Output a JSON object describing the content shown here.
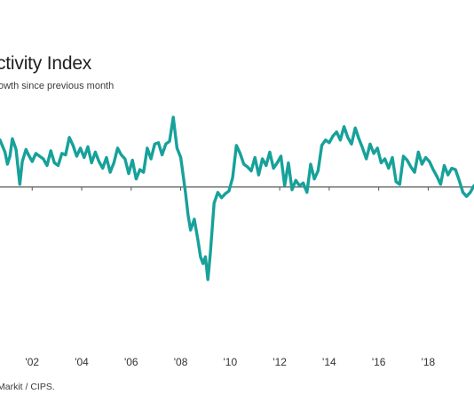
{
  "header": {
    "title": "ctivity Index",
    "subtitle": "owth since previous month"
  },
  "footer": {
    "source": "Markit / CIPS."
  },
  "colors": {
    "line": "#17a19a",
    "baseline": "#555555",
    "tick": "#555555"
  },
  "chart_data": {
    "type": "line",
    "title": "ctivity Index",
    "xlabel": "",
    "ylabel": "",
    "baseline": 50,
    "ylim": [
      40,
      56
    ],
    "xlim": [
      2000.7,
      2019.85
    ],
    "xticks": [
      {
        "value": 2002,
        "label": "'02"
      },
      {
        "value": 2004,
        "label": "'04"
      },
      {
        "value": 2006,
        "label": "'06"
      },
      {
        "value": 2008,
        "label": "'08"
      },
      {
        "value": 2010,
        "label": "'10"
      },
      {
        "value": 2012,
        "label": "'12"
      },
      {
        "value": 2014,
        "label": "'14"
      },
      {
        "value": 2016,
        "label": "'16"
      },
      {
        "value": 2018,
        "label": "'18"
      }
    ],
    "grid": false,
    "series": [
      {
        "x": [
          2000.7,
          2000.9,
          2001.0,
          2001.1,
          2001.2,
          2001.35,
          2001.5,
          2001.6,
          2001.75,
          2001.85,
          2002.0,
          2002.15,
          2002.3,
          2002.45,
          2002.6,
          2002.75,
          2002.9,
          2003.05,
          2003.2,
          2003.35,
          2003.5,
          2003.65,
          2003.8,
          2003.95,
          2004.1,
          2004.25,
          2004.4,
          2004.55,
          2004.7,
          2004.85,
          2005.0,
          2005.15,
          2005.3,
          2005.45,
          2005.6,
          2005.75,
          2005.9,
          2006.05,
          2006.2,
          2006.35,
          2006.5,
          2006.65,
          2006.8,
          2006.95,
          2007.1,
          2007.25,
          2007.4,
          2007.55,
          2007.7,
          2007.85,
          2008.0,
          2008.1,
          2008.2,
          2008.3,
          2008.4,
          2008.55,
          2008.7,
          2008.8,
          2008.9,
          2009.0,
          2009.1,
          2009.2,
          2009.35,
          2009.5,
          2009.65,
          2009.8,
          2009.95,
          2010.1,
          2010.25,
          2010.4,
          2010.55,
          2010.7,
          2010.85,
          2011.0,
          2011.15,
          2011.3,
          2011.45,
          2011.6,
          2011.75,
          2011.9,
          2012.05,
          2012.2,
          2012.35,
          2012.5,
          2012.65,
          2012.8,
          2012.95,
          2013.1,
          2013.25,
          2013.4,
          2013.55,
          2013.7,
          2013.85,
          2014.0,
          2014.15,
          2014.3,
          2014.45,
          2014.6,
          2014.75,
          2014.9,
          2015.05,
          2015.2,
          2015.35,
          2015.5,
          2015.65,
          2015.8,
          2015.95,
          2016.1,
          2016.25,
          2016.4,
          2016.55,
          2016.7,
          2016.85,
          2017.0,
          2017.15,
          2017.3,
          2017.45,
          2017.6,
          2017.75,
          2017.9,
          2018.05,
          2018.2,
          2018.35,
          2018.5,
          2018.65,
          2018.8,
          2018.95,
          2019.1,
          2019.25,
          2019.4,
          2019.55,
          2019.7,
          2019.85
        ],
        "y": [
          53.5,
          52.6,
          51.7,
          52.3,
          53.6,
          52.8,
          50.2,
          51.9,
          52.8,
          52.4,
          51.9,
          52.5,
          52.3,
          52.1,
          51.6,
          52.7,
          51.8,
          51.6,
          52.5,
          52.4,
          53.7,
          53.1,
          52.3,
          52.9,
          52.2,
          53.0,
          51.8,
          52.6,
          51.9,
          51.4,
          52.2,
          51.1,
          51.8,
          52.9,
          52.4,
          52.1,
          51.0,
          52.0,
          50.6,
          51.3,
          51.1,
          52.9,
          52.1,
          53.2,
          53.3,
          52.4,
          53.2,
          53.4,
          55.2,
          52.9,
          52.2,
          50.9,
          49.5,
          47.9,
          46.8,
          47.6,
          46.0,
          44.8,
          44.3,
          44.8,
          43.1,
          45.1,
          48.8,
          49.6,
          49.2,
          49.5,
          49.7,
          50.7,
          53.1,
          52.5,
          51.7,
          51.5,
          51.2,
          52.2,
          50.9,
          52.1,
          51.6,
          52.6,
          51.4,
          51.8,
          52.3,
          50.1,
          51.8,
          49.8,
          50.5,
          50.1,
          50.3,
          49.6,
          51.7,
          50.6,
          51.2,
          53.1,
          53.5,
          53.3,
          53.8,
          54.1,
          53.5,
          54.5,
          53.7,
          53.2,
          54.4,
          53.6,
          52.9,
          52.1,
          53.2,
          52.5,
          52.9,
          51.8,
          52.1,
          51.4,
          52.2,
          50.4,
          50.2,
          52.3,
          52.0,
          51.5,
          51.1,
          52.6,
          51.7,
          52.2,
          51.9,
          51.3,
          50.8,
          50.2,
          51.6,
          50.9,
          51.4,
          51.3,
          50.5,
          49.6,
          49.3,
          49.6,
          50.1
        ]
      }
    ]
  }
}
